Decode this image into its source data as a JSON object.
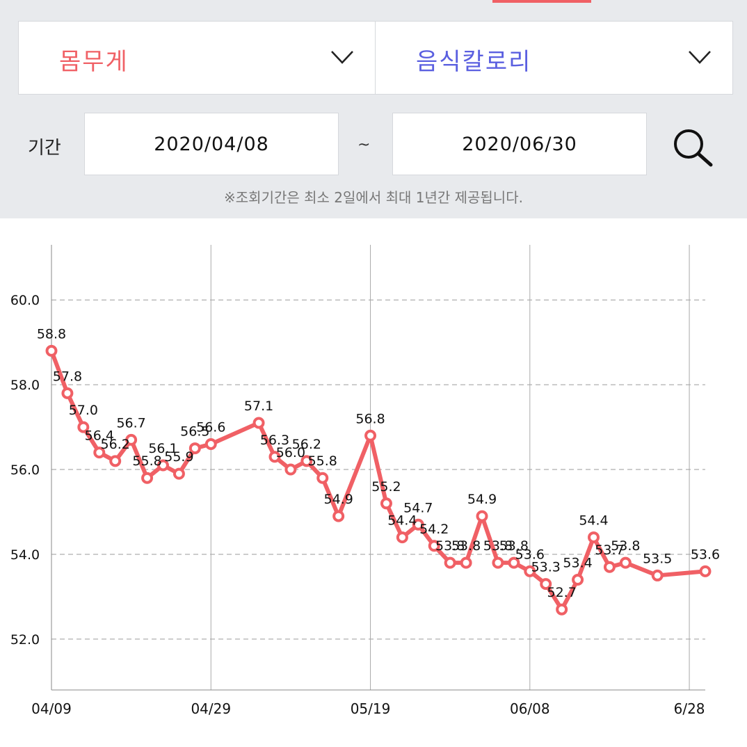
{
  "metric_select": {
    "value": "몸무게"
  },
  "compare_select": {
    "value": "음식칼로리"
  },
  "period": {
    "label": "기간",
    "start": "2020/04/08",
    "separator": "~",
    "end": "2020/06/30"
  },
  "notice": "※조회기간은 최소 2일에서 최대 1년간 제공됩니다.",
  "colors": {
    "accent": "#f06065",
    "secondary": "#5a5fe0",
    "panel": "#e8eaed"
  },
  "chart_data": {
    "type": "line",
    "title": "",
    "xlabel": "",
    "ylabel": "",
    "ylim": [
      50.8,
      61.3
    ],
    "xlim": [
      "2020-04-09",
      "2020-06-30"
    ],
    "yticks": [
      52.0,
      54.0,
      56.0,
      58.0,
      60.0
    ],
    "ytick_labels": [
      "52.0",
      "54.0",
      "56.0",
      "58.0",
      "60.0"
    ],
    "xticks": [
      "2020-04-09",
      "2020-04-29",
      "2020-05-19",
      "2020-06-08",
      "2020-06-28"
    ],
    "xtick_labels": [
      "04/09",
      "04/29",
      "05/19",
      "06/08",
      "6/28"
    ],
    "grid": true,
    "series": [
      {
        "color": "#f06065",
        "points": [
          {
            "x": "2020-04-09",
            "y": 58.8,
            "label": "58.8"
          },
          {
            "x": "2020-04-11",
            "y": 57.8,
            "label": "57.8"
          },
          {
            "x": "2020-04-13",
            "y": 57.0,
            "label": "57.0"
          },
          {
            "x": "2020-04-15",
            "y": 56.4,
            "label": "56.4"
          },
          {
            "x": "2020-04-17",
            "y": 56.2,
            "label": "56.2"
          },
          {
            "x": "2020-04-19",
            "y": 56.7,
            "label": "56.7"
          },
          {
            "x": "2020-04-21",
            "y": 55.8,
            "label": "55.8"
          },
          {
            "x": "2020-04-23",
            "y": 56.1,
            "label": "56.1"
          },
          {
            "x": "2020-04-25",
            "y": 55.9,
            "label": "55.9"
          },
          {
            "x": "2020-04-27",
            "y": 56.5,
            "label": "56.5"
          },
          {
            "x": "2020-04-29",
            "y": 56.6,
            "label": "56.6"
          },
          {
            "x": "2020-05-05",
            "y": 57.1,
            "label": "57.1"
          },
          {
            "x": "2020-05-07",
            "y": 56.3,
            "label": "56.3"
          },
          {
            "x": "2020-05-09",
            "y": 56.0,
            "label": "56.0"
          },
          {
            "x": "2020-05-11",
            "y": 56.2,
            "label": "56.2"
          },
          {
            "x": "2020-05-13",
            "y": 55.8,
            "label": "55.8"
          },
          {
            "x": "2020-05-15",
            "y": 54.9,
            "label": "54.9"
          },
          {
            "x": "2020-05-19",
            "y": 56.8,
            "label": "56.8"
          },
          {
            "x": "2020-05-21",
            "y": 55.2,
            "label": "55.2"
          },
          {
            "x": "2020-05-23",
            "y": 54.4,
            "label": "54.4"
          },
          {
            "x": "2020-05-25",
            "y": 54.7,
            "label": "54.7"
          },
          {
            "x": "2020-05-27",
            "y": 54.2,
            "label": "54.2"
          },
          {
            "x": "2020-05-29",
            "y": 53.8,
            "label": "53.8"
          },
          {
            "x": "2020-05-31",
            "y": 53.8,
            "label": "53.8"
          },
          {
            "x": "2020-06-02",
            "y": 54.9,
            "label": "54.9"
          },
          {
            "x": "2020-06-04",
            "y": 53.8,
            "label": "53.8"
          },
          {
            "x": "2020-06-06",
            "y": 53.8,
            "label": "53.8"
          },
          {
            "x": "2020-06-08",
            "y": 53.6,
            "label": "53.6"
          },
          {
            "x": "2020-06-10",
            "y": 53.3,
            "label": "53.3"
          },
          {
            "x": "2020-06-12",
            "y": 52.7,
            "label": "52.7"
          },
          {
            "x": "2020-06-14",
            "y": 53.4,
            "label": "53.4"
          },
          {
            "x": "2020-06-16",
            "y": 54.4,
            "label": "54.4"
          },
          {
            "x": "2020-06-18",
            "y": 53.7,
            "label": "53.7"
          },
          {
            "x": "2020-06-20",
            "y": 53.8,
            "label": "53.8"
          },
          {
            "x": "2020-06-24",
            "y": 53.5,
            "label": "53.5"
          },
          {
            "x": "2020-06-30",
            "y": 53.6,
            "label": "53.6"
          }
        ]
      }
    ]
  }
}
